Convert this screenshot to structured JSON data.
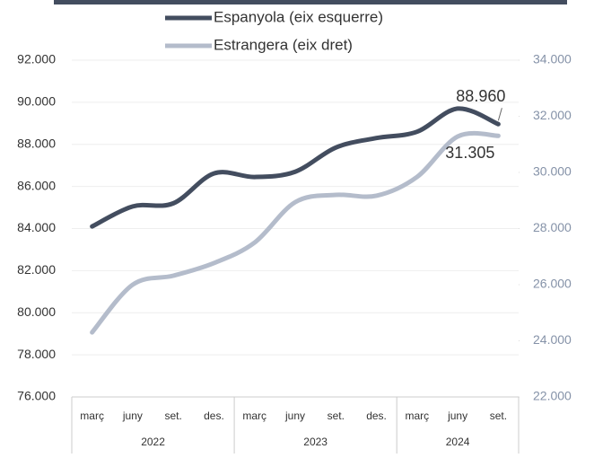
{
  "chart_data": {
    "type": "line",
    "categories": [
      "març",
      "juny",
      "set.",
      "des.",
      "març",
      "juny",
      "set.",
      "des.",
      "març",
      "juny",
      "set."
    ],
    "x_groups": [
      {
        "label": "2022",
        "count": 4
      },
      {
        "label": "2023",
        "count": 4
      },
      {
        "label": "2024",
        "count": 3
      }
    ],
    "series": [
      {
        "name": "Espanyola (eix esquerre)",
        "color": "#434d5f",
        "values": [
          84100,
          85050,
          85200,
          86620,
          86450,
          86700,
          87850,
          88300,
          88600,
          89700,
          88960
        ],
        "value_labels": [
          null,
          null,
          null,
          null,
          null,
          null,
          null,
          null,
          null,
          null,
          "88.960"
        ]
      },
      {
        "name": "Estrangera (eix dret)",
        "color": "#b4bccb",
        "axis": "y2",
        "values": [
          24300,
          26000,
          26320,
          26770,
          27500,
          28940,
          29200,
          29170,
          29840,
          31280,
          31305
        ],
        "value_labels": [
          null,
          null,
          null,
          null,
          null,
          null,
          null,
          null,
          null,
          null,
          "31.305"
        ]
      }
    ],
    "ylim": [
      76000,
      92000
    ],
    "yticks": [
      {
        "value": 76000,
        "label": "76.000"
      },
      {
        "value": 78000,
        "label": "78.000"
      },
      {
        "value": 80000,
        "label": "80.000"
      },
      {
        "value": 82000,
        "label": "82.000"
      },
      {
        "value": 84000,
        "label": "84.000"
      },
      {
        "value": 86000,
        "label": "86.000"
      },
      {
        "value": 88000,
        "label": "88.000"
      },
      {
        "value": 90000,
        "label": "90.000"
      },
      {
        "value": 92000,
        "label": "92.000"
      }
    ],
    "y2lim": [
      22000,
      34000
    ],
    "y2ticks": [
      {
        "value": 22000,
        "label": "22.000"
      },
      {
        "value": 24000,
        "label": "24.000"
      },
      {
        "value": 26000,
        "label": "26.000"
      },
      {
        "value": 28000,
        "label": "28.000"
      },
      {
        "value": 30000,
        "label": "30.000"
      },
      {
        "value": 32000,
        "label": "32.000"
      },
      {
        "value": 34000,
        "label": "34.000"
      }
    ],
    "grid": true
  }
}
